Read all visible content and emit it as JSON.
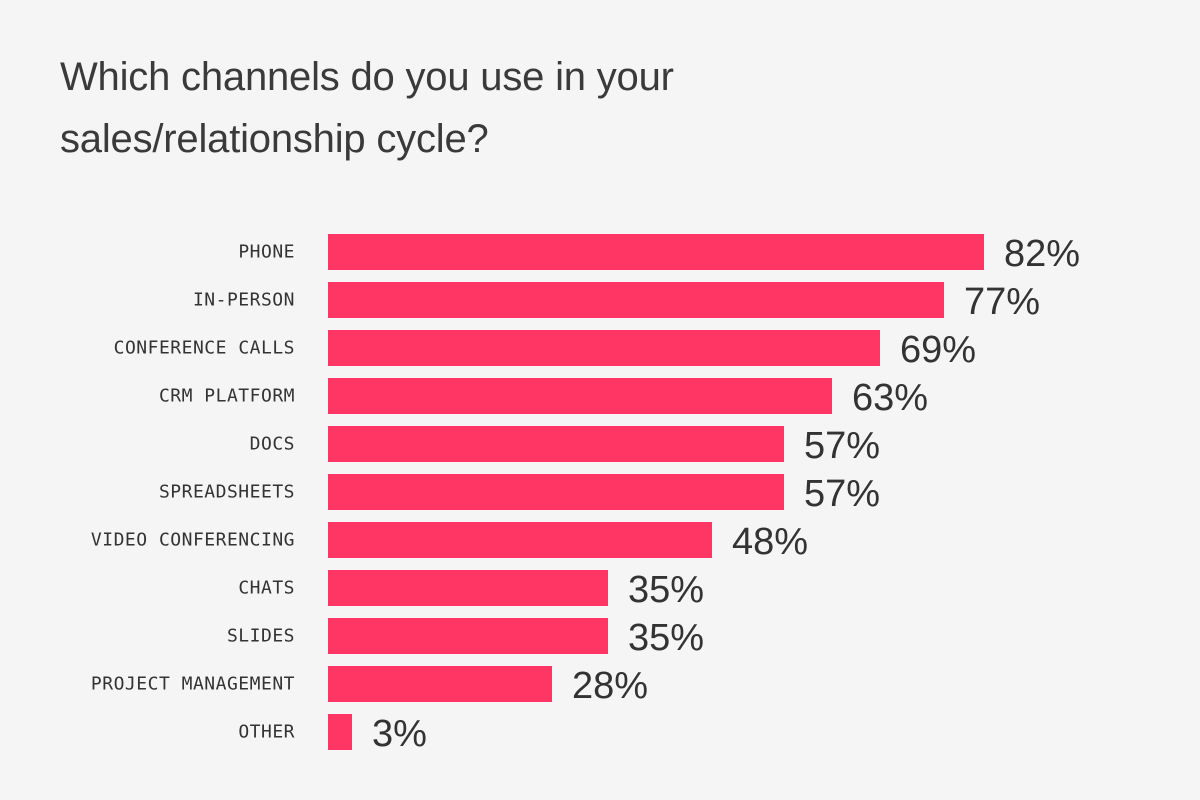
{
  "chart_data": {
    "type": "bar",
    "orientation": "horizontal",
    "title": "Which channels do you use in your sales/relationship cycle?",
    "categories": [
      "PHONE",
      "IN-PERSON",
      "CONFERENCE CALLS",
      "CRM PLATFORM",
      "DOCS",
      "SPREADSHEETS",
      "VIDEO CONFERENCING",
      "CHATS",
      "SLIDES",
      "PROJECT MANAGEMENT",
      "OTHER"
    ],
    "values": [
      82,
      77,
      69,
      63,
      57,
      57,
      48,
      35,
      35,
      28,
      3
    ],
    "value_labels": [
      "82%",
      "77%",
      "69%",
      "63%",
      "57%",
      "57%",
      "48%",
      "35%",
      "35%",
      "28%",
      "3%"
    ],
    "value_unit": "%",
    "xlim": [
      0,
      100
    ],
    "xlabel": "",
    "ylabel": "",
    "grid": false,
    "legend": "none",
    "bar_color": "#ff3563"
  }
}
